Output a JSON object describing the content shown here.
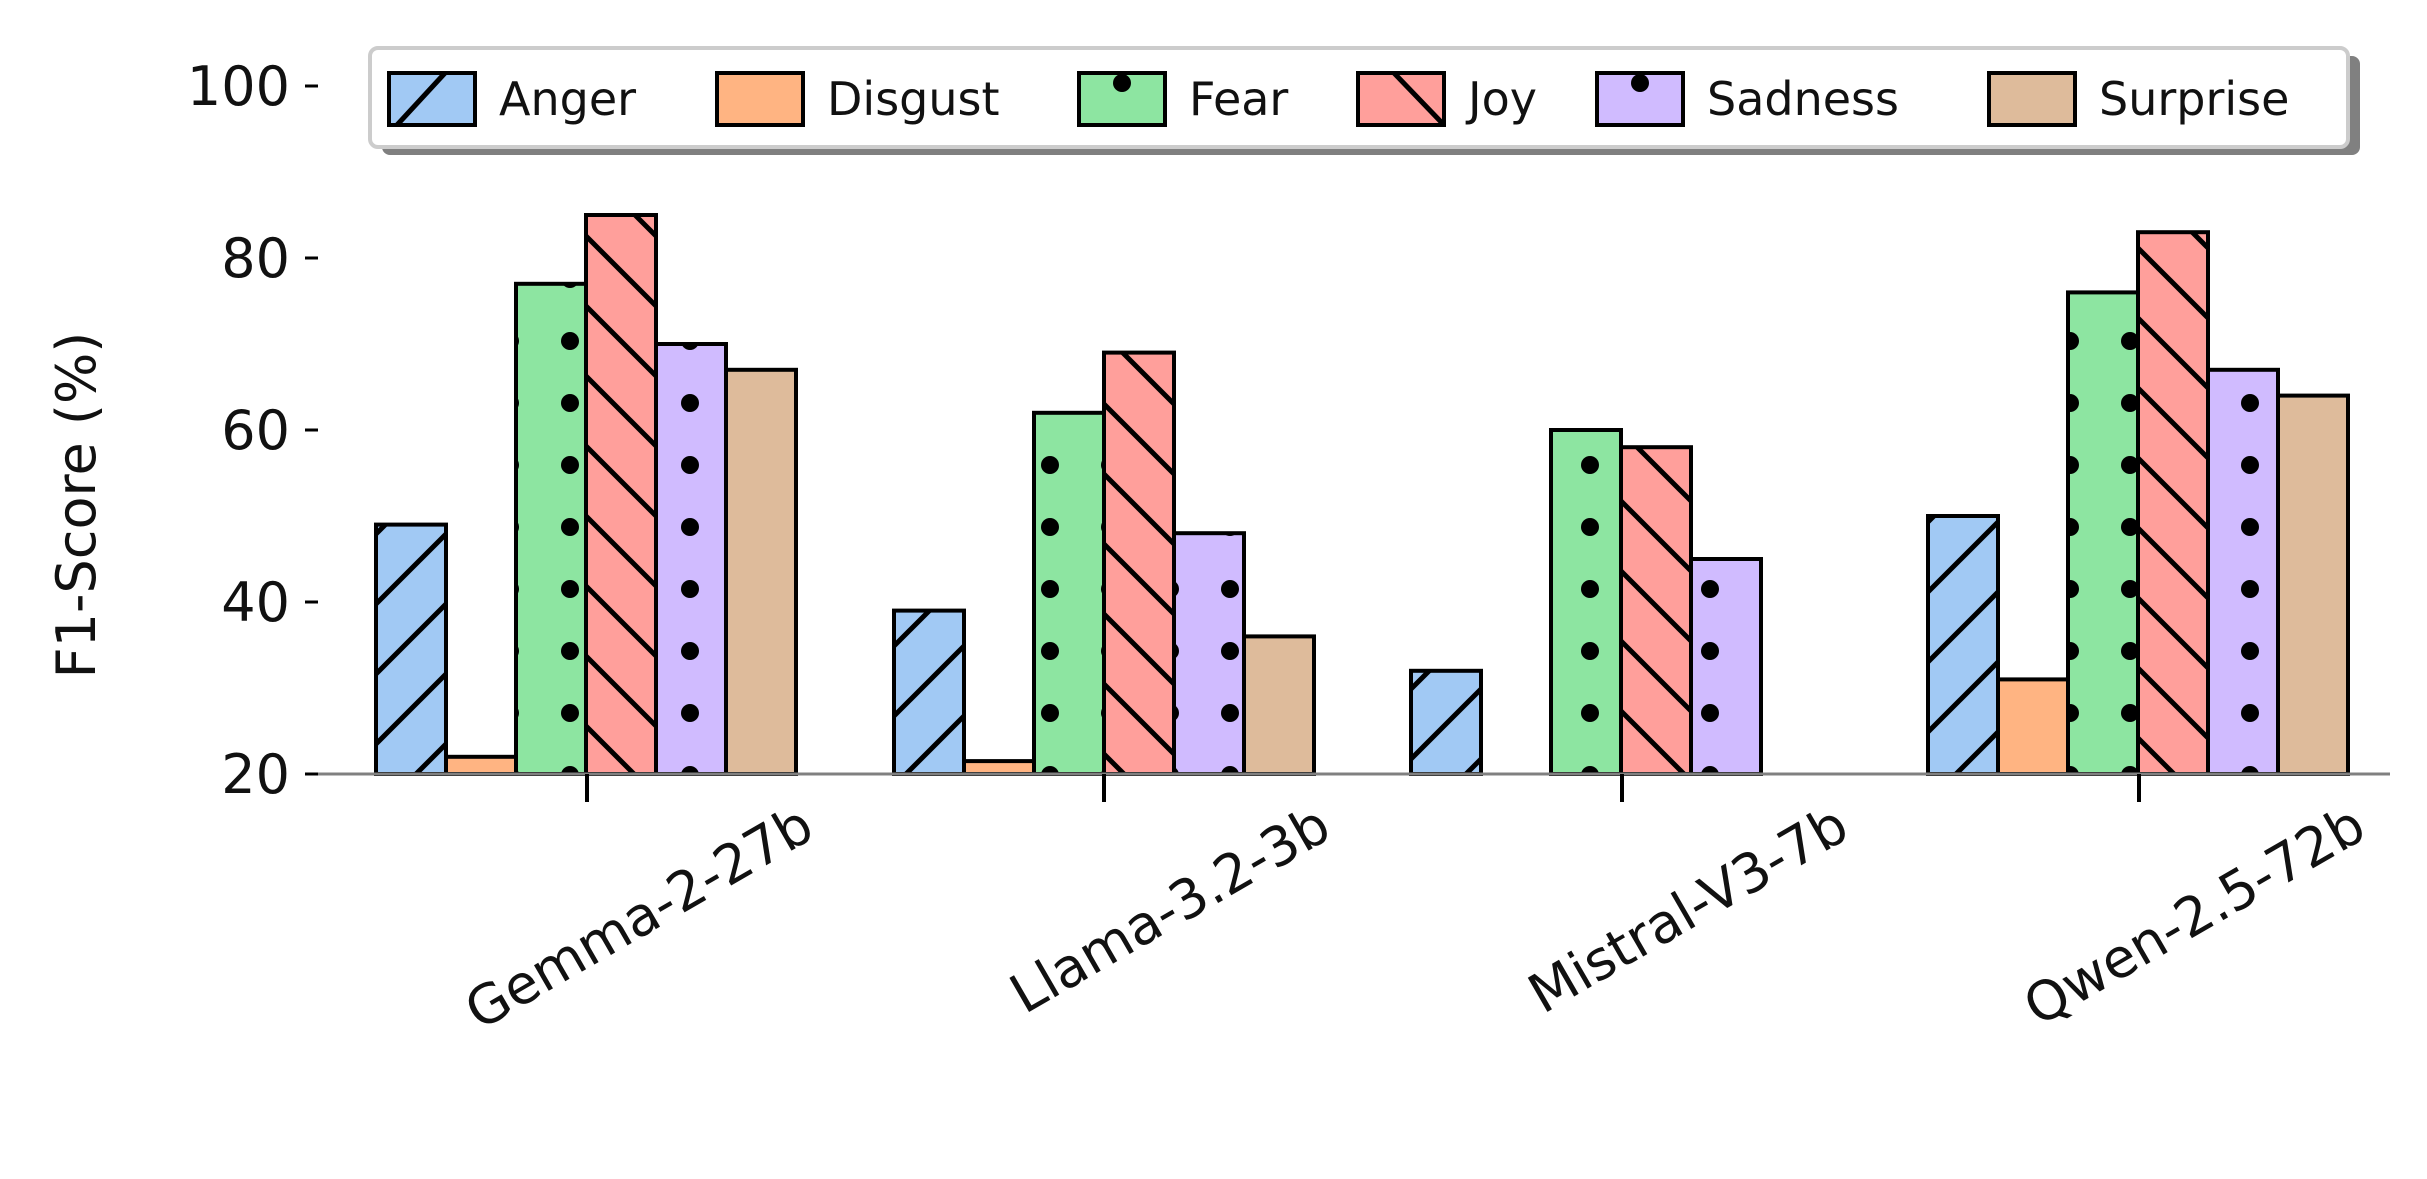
{
  "chart_data": {
    "type": "bar",
    "title": "",
    "xlabel": "",
    "ylabel": "F1-Score (%)",
    "ylim": [
      20,
      100
    ],
    "yticks": [
      20,
      40,
      60,
      80,
      100
    ],
    "categories": [
      "Gemma-2-27b",
      "Llama-3.2-3b",
      "Mistral-V3-7b",
      "Qwen-2.5-72b"
    ],
    "series": [
      {
        "name": "Anger",
        "color": "#a1c9f4",
        "pattern": "slash",
        "values": [
          49,
          39,
          32,
          50
        ]
      },
      {
        "name": "Disgust",
        "color": "#ffb482",
        "pattern": "none",
        "values": [
          22,
          21.5,
          null,
          31
        ]
      },
      {
        "name": "Fear",
        "color": "#8de5a1",
        "pattern": "dots",
        "values": [
          77,
          62,
          60,
          76
        ]
      },
      {
        "name": "Joy",
        "color": "#ff9f9b",
        "pattern": "backslash",
        "values": [
          85,
          69,
          58,
          83
        ]
      },
      {
        "name": "Sadness",
        "color": "#d0bbff",
        "pattern": "dots",
        "values": [
          70,
          48,
          45,
          67
        ]
      },
      {
        "name": "Surprise",
        "color": "#debb9b",
        "pattern": "none",
        "values": [
          67,
          36,
          null,
          64
        ]
      }
    ],
    "grid": false,
    "legend_position": "top"
  }
}
